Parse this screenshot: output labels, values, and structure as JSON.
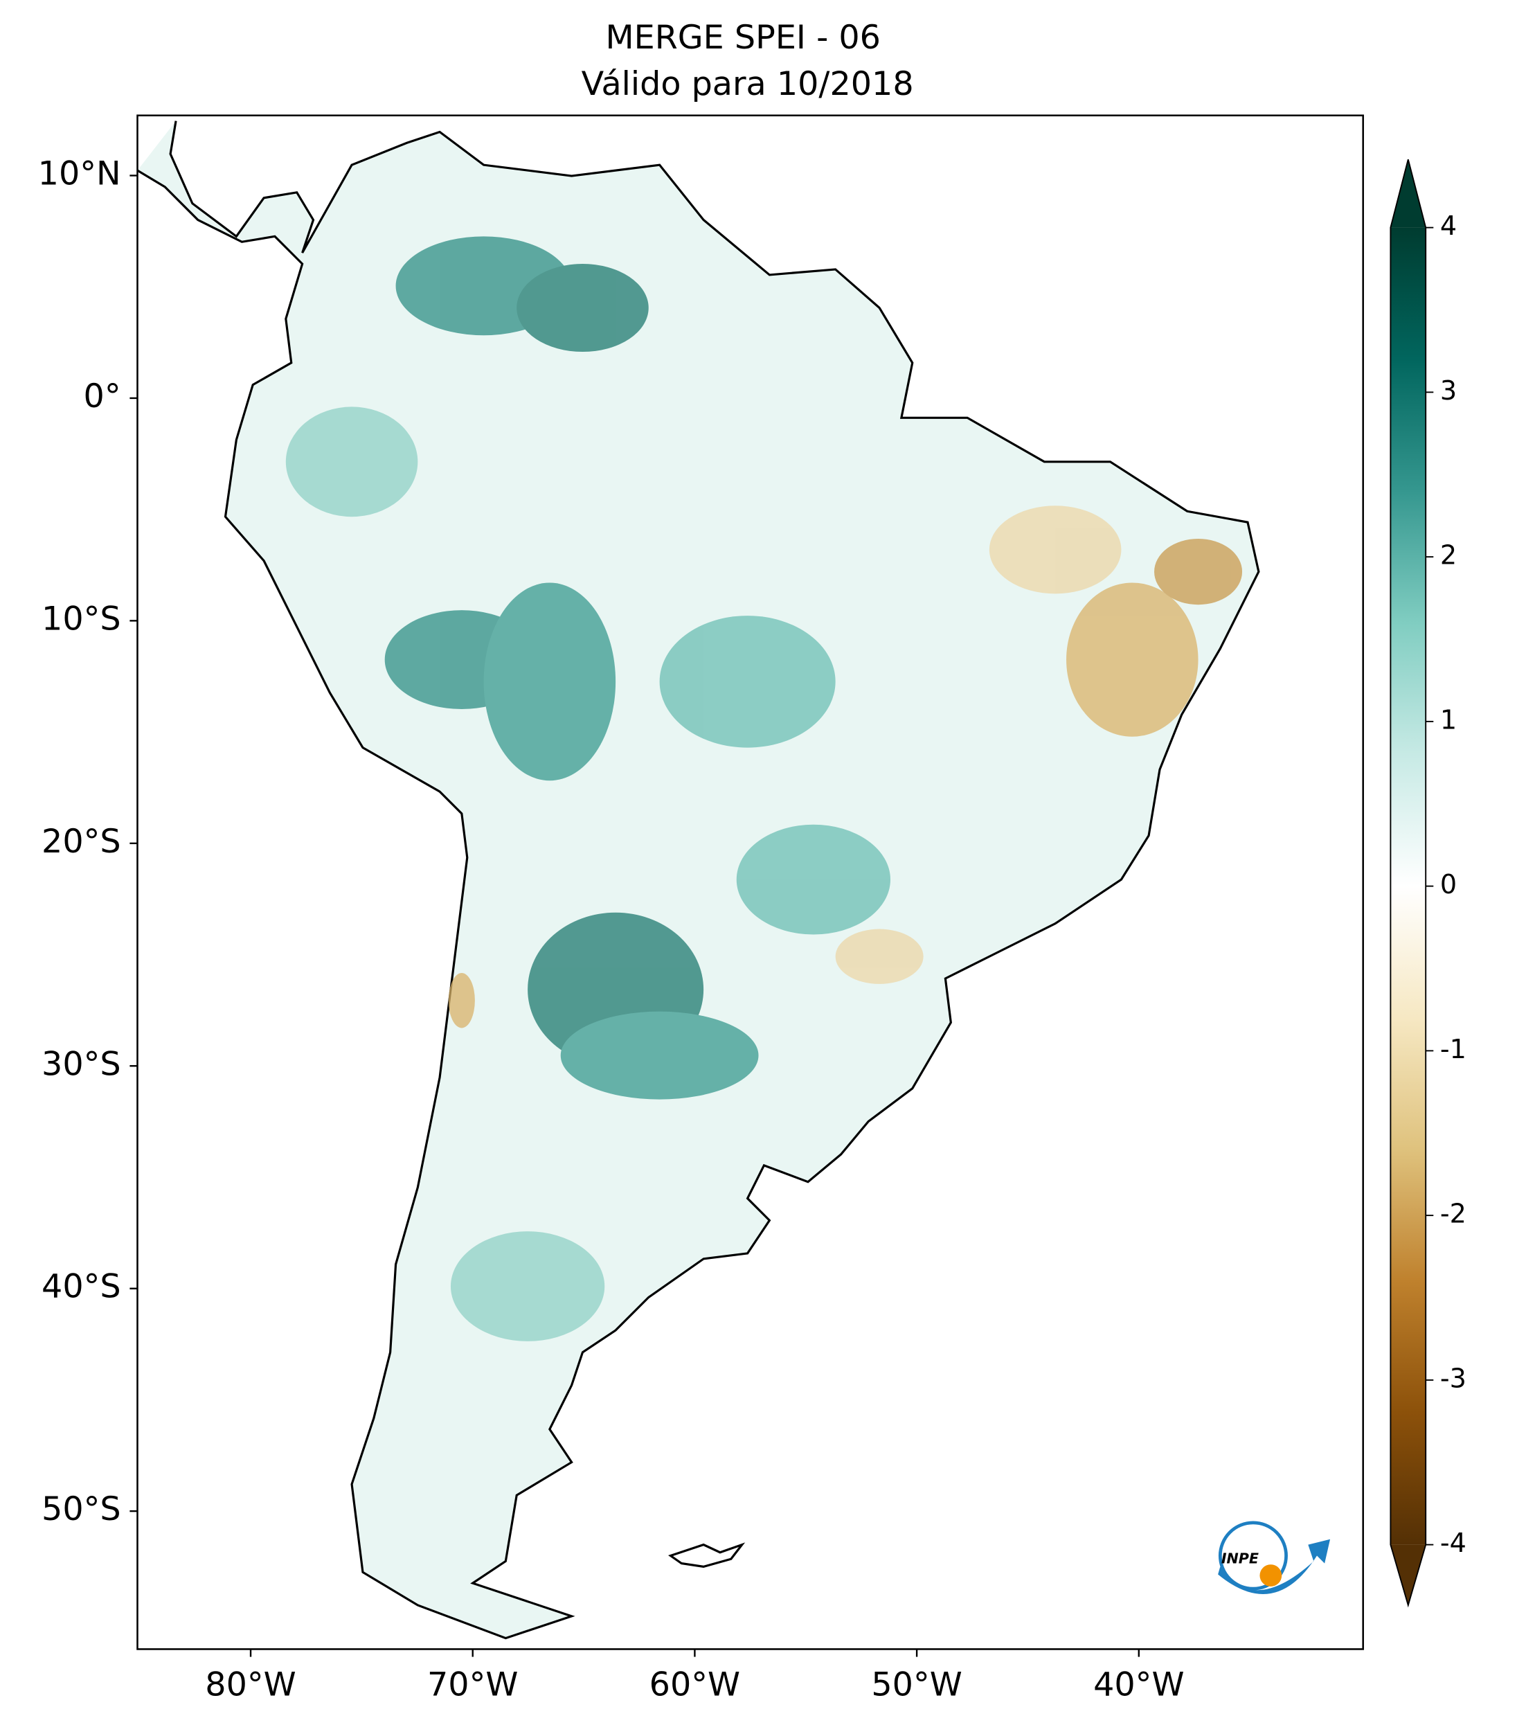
{
  "chart_data": {
    "type": "map",
    "title": "MERGE   SPEI - 06",
    "subtitle": "Válido para 10/2018",
    "xlim": [
      -85.1,
      -29.9
    ],
    "ylim": [
      -56.2,
      12.7
    ],
    "xticks": [
      {
        "value": -80,
        "label": "80°W"
      },
      {
        "value": -70,
        "label": "70°W"
      },
      {
        "value": -60,
        "label": "60°W"
      },
      {
        "value": -50,
        "label": "50°W"
      },
      {
        "value": -40,
        "label": "40°W"
      }
    ],
    "yticks": [
      {
        "value": 10,
        "label": "10°N"
      },
      {
        "value": 0,
        "label": "0°"
      },
      {
        "value": -10,
        "label": "10°S"
      },
      {
        "value": -20,
        "label": "20°S"
      },
      {
        "value": -30,
        "label": "30°S"
      },
      {
        "value": -40,
        "label": "40°S"
      },
      {
        "value": -50,
        "label": "50°S"
      }
    ],
    "colorbar": {
      "lim": [
        -4,
        4
      ],
      "ticks": [
        -4,
        -3,
        -2,
        -1,
        0,
        1,
        2,
        3,
        4
      ],
      "colors": [
        "#543005",
        "#8c510a",
        "#bf812d",
        "#dfc27d",
        "#f6e8c3",
        "#ffffff",
        "#c7eae5",
        "#80cdc1",
        "#35978f",
        "#01665e",
        "#003c30"
      ]
    }
  },
  "logo": {
    "text": "INPE"
  }
}
